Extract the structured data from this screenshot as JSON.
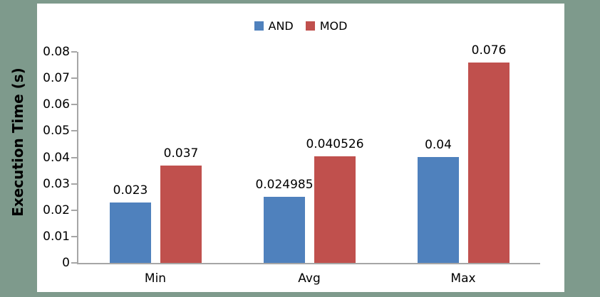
{
  "colors": {
    "background": "#7E9A8C",
    "plot_background": "#FFFFFF",
    "axis": "#A6A6A6",
    "text": "#000000"
  },
  "chart_data": {
    "type": "bar",
    "categories": [
      "Min",
      "Avg",
      "Max"
    ],
    "series": [
      {
        "name": "AND",
        "color": "#4F81BD",
        "values": [
          0.023,
          0.024985,
          0.04
        ],
        "labels": [
          "0.023",
          "0.024985",
          "0.04"
        ]
      },
      {
        "name": "MOD",
        "color": "#C0504D",
        "values": [
          0.037,
          0.040526,
          0.076
        ],
        "labels": [
          "0.037",
          "0.040526",
          "0.076"
        ]
      }
    ],
    "title": "",
    "xlabel": "",
    "ylabel": "Execution Time (s)",
    "ylim": [
      0,
      0.08
    ],
    "ytick_step": 0.01,
    "yticks": [
      "0",
      "0.01",
      "0.02",
      "0.03",
      "0.04",
      "0.05",
      "0.06",
      "0.07",
      "0.08"
    ],
    "legend_position": "top-center",
    "grid": false
  }
}
